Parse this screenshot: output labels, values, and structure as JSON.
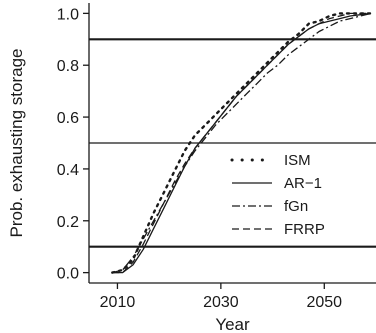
{
  "chart_data": {
    "type": "line",
    "xlabel": "Year",
    "ylabel": "Prob. exhausting storage",
    "xlim": [
      2004.5,
      2060
    ],
    "ylim": [
      -0.04,
      1.04
    ],
    "xticks": [
      2010,
      2030,
      2050
    ],
    "yticks": [
      0.0,
      0.2,
      0.4,
      0.6,
      0.8,
      1.0
    ],
    "xtick_labels": [
      "2010",
      "2030",
      "2050"
    ],
    "ytick_labels": [
      "0.0",
      "0.2",
      "0.4",
      "0.6",
      "0.8",
      "1.0"
    ],
    "grid": false,
    "legend_position": "center-right",
    "reference_lines_y": [
      0.1,
      0.5,
      0.9
    ],
    "reference_line_styles": [
      "thick",
      "thin",
      "thick"
    ],
    "x": [
      2009,
      2011,
      2013,
      2015,
      2017,
      2019,
      2021,
      2023,
      2025,
      2027,
      2029,
      2031,
      2033,
      2035,
      2037,
      2039,
      2041,
      2043,
      2045,
      2047,
      2049,
      2051,
      2053,
      2055,
      2057,
      2059
    ],
    "series": [
      {
        "name": "ISM",
        "dash": "dotted",
        "values": [
          0.0,
          0.01,
          0.05,
          0.14,
          0.23,
          0.31,
          0.39,
          0.47,
          0.53,
          0.57,
          0.61,
          0.65,
          0.69,
          0.73,
          0.77,
          0.81,
          0.85,
          0.89,
          0.92,
          0.96,
          0.97,
          0.99,
          1.0,
          1.0,
          1.0,
          1.0
        ]
      },
      {
        "name": "AR−1",
        "dash": "solid",
        "values": [
          0.0,
          0.0,
          0.03,
          0.09,
          0.17,
          0.25,
          0.33,
          0.41,
          0.48,
          0.53,
          0.58,
          0.63,
          0.68,
          0.72,
          0.76,
          0.8,
          0.84,
          0.88,
          0.91,
          0.94,
          0.96,
          0.97,
          0.98,
          0.99,
          0.995,
          1.0
        ]
      },
      {
        "name": "fGn",
        "dash": "dashdot",
        "values": [
          0.0,
          0.01,
          0.06,
          0.13,
          0.2,
          0.27,
          0.34,
          0.41,
          0.47,
          0.52,
          0.57,
          0.61,
          0.65,
          0.69,
          0.73,
          0.77,
          0.8,
          0.84,
          0.87,
          0.9,
          0.93,
          0.95,
          0.97,
          0.98,
          0.99,
          1.0
        ]
      },
      {
        "name": "FRRP",
        "dash": "dashed",
        "values": [
          0.0,
          0.0,
          0.04,
          0.11,
          0.19,
          0.27,
          0.35,
          0.42,
          0.48,
          0.53,
          0.58,
          0.63,
          0.68,
          0.72,
          0.76,
          0.8,
          0.84,
          0.88,
          0.91,
          0.94,
          0.96,
          0.98,
          0.99,
          1.0,
          1.0,
          1.0
        ]
      }
    ]
  }
}
